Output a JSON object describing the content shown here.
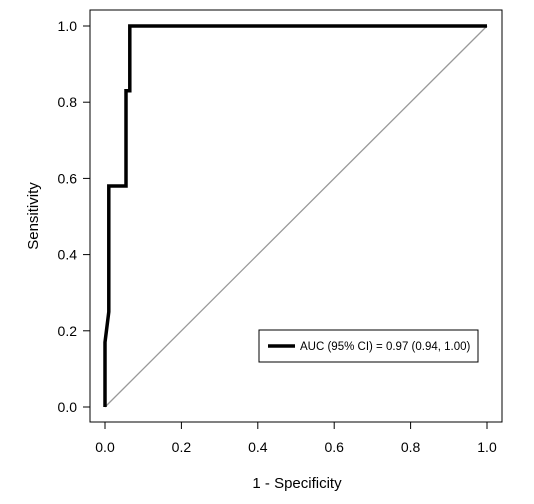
{
  "chart_data": {
    "type": "line",
    "title": "",
    "xlabel": "1 - Specificity",
    "ylabel": "Sensitivity",
    "xlim": [
      0,
      1
    ],
    "ylim": [
      0,
      1
    ],
    "x_ticks": [
      "0.0",
      "0.2",
      "0.4",
      "0.6",
      "0.8",
      "1.0"
    ],
    "y_ticks": [
      "0.0",
      "0.2",
      "0.4",
      "0.6",
      "0.8",
      "1.0"
    ],
    "grid": false,
    "legend_position": "bottom-right",
    "series": [
      {
        "name": "AUC (95% CI) = 0.97 (0.94, 1.00)",
        "color": "#000000",
        "x": [
          0.0,
          0.0,
          0.01,
          0.01,
          0.01,
          0.055,
          0.055,
          0.065,
          0.065,
          0.07,
          1.0
        ],
        "y": [
          0.0,
          0.17,
          0.25,
          0.58,
          0.58,
          0.58,
          0.83,
          0.83,
          1.0,
          1.0,
          1.0
        ]
      }
    ],
    "reference_line": {
      "x": [
        0,
        1
      ],
      "y": [
        0,
        1
      ],
      "color": "#999999"
    }
  }
}
